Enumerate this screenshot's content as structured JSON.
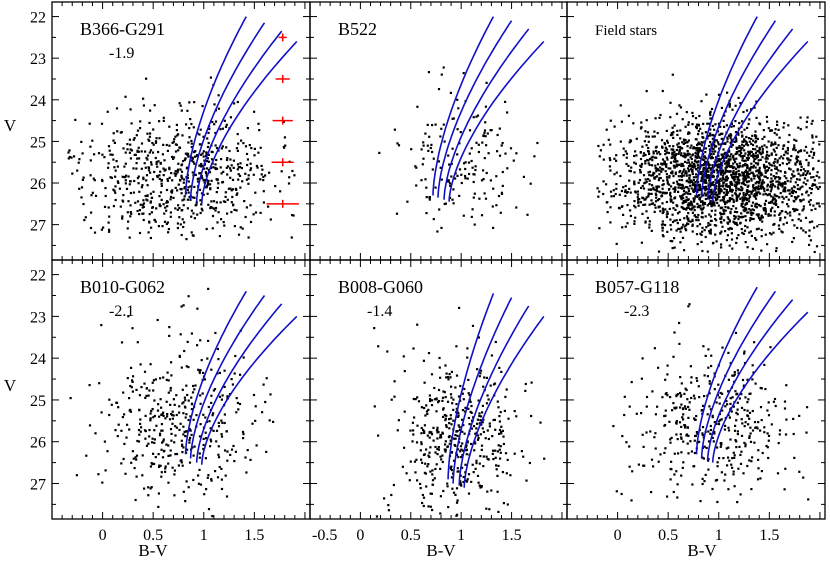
{
  "figure": {
    "ylabel": "V",
    "xlabel": "B-V"
  },
  "colors": {
    "isochrone": "#1010c8",
    "error_bar": "#ff0000",
    "star": "#000000"
  },
  "chart_data": [
    {
      "type": "scatter",
      "title": "B366-G291",
      "subtitle": "-1.9",
      "xlim": [
        -0.5,
        2.05
      ],
      "ylim": [
        27.85,
        21.65
      ],
      "yticks": [
        22,
        23,
        24,
        25,
        26,
        27
      ],
      "xticks": [],
      "points": {
        "n": 700,
        "cx": 0.75,
        "cy": 25.9,
        "sx": 0.48,
        "sy": 0.8,
        "xmin": -0.35,
        "xmax": 1.9,
        "ymin": 22.5,
        "ymax": 27.35,
        "seed": 11
      },
      "isochrones": [
        {
          "x0": 0.82,
          "x1": 1.42,
          "y0": 26.3,
          "y1": 22.0
        },
        {
          "x0": 0.87,
          "x1": 1.6,
          "y0": 26.4,
          "y1": 22.15
        },
        {
          "x0": 0.93,
          "x1": 1.77,
          "y0": 26.45,
          "y1": 22.35
        },
        {
          "x0": 0.98,
          "x1": 1.92,
          "y0": 26.5,
          "y1": 22.6
        }
      ],
      "error_bars": [
        {
          "x": 1.78,
          "v": 22.5,
          "err": 0.04
        },
        {
          "x": 1.78,
          "v": 23.5,
          "err": 0.07
        },
        {
          "x": 1.78,
          "v": 24.5,
          "err": 0.1
        },
        {
          "x": 1.78,
          "v": 25.5,
          "err": 0.11
        },
        {
          "x": 1.78,
          "v": 26.5,
          "err": 0.16
        }
      ]
    },
    {
      "type": "scatter",
      "title": "B522",
      "subtitle": "",
      "xlim": [
        -0.5,
        2.05
      ],
      "ylim": [
        27.85,
        21.65
      ],
      "yticks": [],
      "xticks": [],
      "points": {
        "n": 170,
        "cx": 1.0,
        "cy": 25.5,
        "sx": 0.3,
        "sy": 0.85,
        "xmin": 0.1,
        "xmax": 1.85,
        "ymin": 23.2,
        "ymax": 27.2,
        "seed": 23
      },
      "isochrones": [
        {
          "x0": 0.72,
          "x1": 1.32,
          "y0": 26.3,
          "y1": 22.0
        },
        {
          "x0": 0.77,
          "x1": 1.5,
          "y0": 26.35,
          "y1": 22.1
        },
        {
          "x0": 0.83,
          "x1": 1.67,
          "y0": 26.4,
          "y1": 22.3
        },
        {
          "x0": 0.88,
          "x1": 1.82,
          "y0": 26.45,
          "y1": 22.6
        }
      ],
      "error_bars": []
    },
    {
      "type": "scatter",
      "title": "Field stars",
      "subtitle": "",
      "xlim": [
        -0.5,
        2.05
      ],
      "ylim": [
        27.85,
        21.65
      ],
      "yticks": [],
      "xticks": [],
      "points": {
        "n": 2200,
        "cx": 1.0,
        "cy": 25.9,
        "sx": 0.5,
        "sy": 0.72,
        "xmin": -0.2,
        "xmax": 2.0,
        "ymin": 22.5,
        "ymax": 27.7,
        "seed": 37
      },
      "isochrones": [
        {
          "x0": 0.78,
          "x1": 1.38,
          "y0": 26.3,
          "y1": 22.0
        },
        {
          "x0": 0.83,
          "x1": 1.56,
          "y0": 26.35,
          "y1": 22.1
        },
        {
          "x0": 0.89,
          "x1": 1.73,
          "y0": 26.4,
          "y1": 22.3
        },
        {
          "x0": 0.94,
          "x1": 1.88,
          "y0": 26.45,
          "y1": 22.6
        }
      ],
      "error_bars": []
    },
    {
      "type": "scatter",
      "title": "B010-G062",
      "subtitle": "-2.1",
      "xlim": [
        -0.5,
        2.05
      ],
      "ylim": [
        27.85,
        21.65
      ],
      "yticks": [
        22,
        23,
        24,
        25,
        26,
        27
      ],
      "xticks": [
        0,
        0.5,
        1,
        1.5
      ],
      "xtick_labels": [
        "0",
        "0.5",
        "1",
        "1.5"
      ],
      "points": {
        "n": 420,
        "cx": 0.8,
        "cy": 25.5,
        "sx": 0.42,
        "sy": 1.05,
        "xmin": -0.35,
        "xmax": 1.9,
        "ymin": 22.3,
        "ymax": 27.8,
        "seed": 53
      },
      "isochrones": [
        {
          "x0": 0.82,
          "x1": 1.42,
          "y0": 26.3,
          "y1": 22.4
        },
        {
          "x0": 0.87,
          "x1": 1.6,
          "y0": 26.4,
          "y1": 22.5
        },
        {
          "x0": 0.93,
          "x1": 1.77,
          "y0": 26.5,
          "y1": 22.7
        },
        {
          "x0": 0.98,
          "x1": 1.92,
          "y0": 26.55,
          "y1": 23.0
        }
      ],
      "error_bars": []
    },
    {
      "type": "scatter",
      "title": "B008-G060",
      "subtitle": "-1.4",
      "xlim": [
        -0.5,
        2.05
      ],
      "ylim": [
        27.85,
        21.65
      ],
      "yticks": [],
      "xticks": [
        -0.5,
        0,
        0.5,
        1,
        1.5
      ],
      "xtick_labels": [
        "-0.5",
        "0",
        "0.5",
        "1",
        "1.5"
      ],
      "points": {
        "n": 450,
        "cx": 0.95,
        "cy": 25.8,
        "sx": 0.32,
        "sy": 0.95,
        "xmin": 0.1,
        "xmax": 1.85,
        "ymin": 22.5,
        "ymax": 27.8,
        "seed": 71
      },
      "isochrones": [
        {
          "x0": 0.87,
          "x1": 1.32,
          "y0": 26.9,
          "y1": 22.45
        },
        {
          "x0": 0.92,
          "x1": 1.5,
          "y0": 27.0,
          "y1": 22.55
        },
        {
          "x0": 0.98,
          "x1": 1.67,
          "y0": 27.05,
          "y1": 22.75
        },
        {
          "x0": 1.03,
          "x1": 1.82,
          "y0": 27.1,
          "y1": 23.0
        }
      ],
      "error_bars": []
    },
    {
      "type": "scatter",
      "title": "B057-G118",
      "subtitle": "-2.3",
      "xlim": [
        -0.5,
        2.05
      ],
      "ylim": [
        27.85,
        21.65
      ],
      "yticks": [],
      "xticks": [
        0,
        0.5,
        1,
        1.5
      ],
      "xtick_labels": [
        "0",
        "0.5",
        "1",
        "1.5"
      ],
      "points": {
        "n": 420,
        "cx": 0.95,
        "cy": 25.6,
        "sx": 0.4,
        "sy": 0.95,
        "xmin": -0.1,
        "xmax": 1.9,
        "ymin": 22.5,
        "ymax": 27.5,
        "seed": 89
      },
      "isochrones": [
        {
          "x0": 0.78,
          "x1": 1.38,
          "y0": 26.3,
          "y1": 22.3
        },
        {
          "x0": 0.83,
          "x1": 1.56,
          "y0": 26.4,
          "y1": 22.4
        },
        {
          "x0": 0.89,
          "x1": 1.73,
          "y0": 26.45,
          "y1": 22.6
        },
        {
          "x0": 0.94,
          "x1": 1.88,
          "y0": 26.5,
          "y1": 22.9
        }
      ],
      "error_bars": []
    }
  ]
}
